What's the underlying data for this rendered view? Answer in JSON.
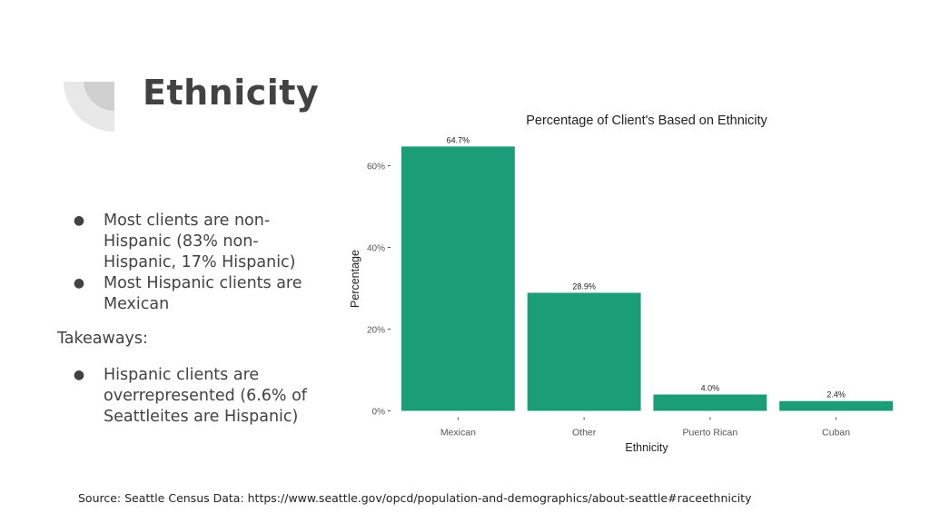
{
  "slide": {
    "title": "Ethnicity",
    "bullets_top": [
      "Most clients are non-Hispanic (83% non-Hispanic, 17% Hispanic)",
      "Most Hispanic clients are Mexican"
    ],
    "takeaways_label": "Takeaways:",
    "bullets_bottom": [
      "Hispanic clients are overrepresented (6.6% of Seattleites are Hispanic)"
    ],
    "bullet_glyph": "●",
    "source": "Source: Seattle Census Data: https://www.seattle.gov/opcd/population-and-demographics/about-seattle#raceethnicity"
  },
  "colors": {
    "bar": "#1b9e77",
    "deco_light": "#e8e8e8",
    "deco_dark": "#cfcfcf",
    "text": "#424242"
  },
  "chart_data": {
    "type": "bar",
    "title": "Percentage of Client's Based on Ethnicity",
    "xlabel": "Ethnicity",
    "ylabel": "Percentage",
    "categories": [
      "Mexican",
      "Other",
      "Puerto Rican",
      "Cuban"
    ],
    "values": [
      64.7,
      28.9,
      4.0,
      2.4
    ],
    "data_labels": [
      "64.7%",
      "28.9%",
      "4.0%",
      "2.4%"
    ],
    "yticks": [
      0,
      20,
      40,
      60
    ],
    "ytick_labels": [
      "0%",
      "20%",
      "40%",
      "60%"
    ],
    "ylim": [
      0,
      67
    ],
    "grid": false,
    "legend": "none"
  }
}
